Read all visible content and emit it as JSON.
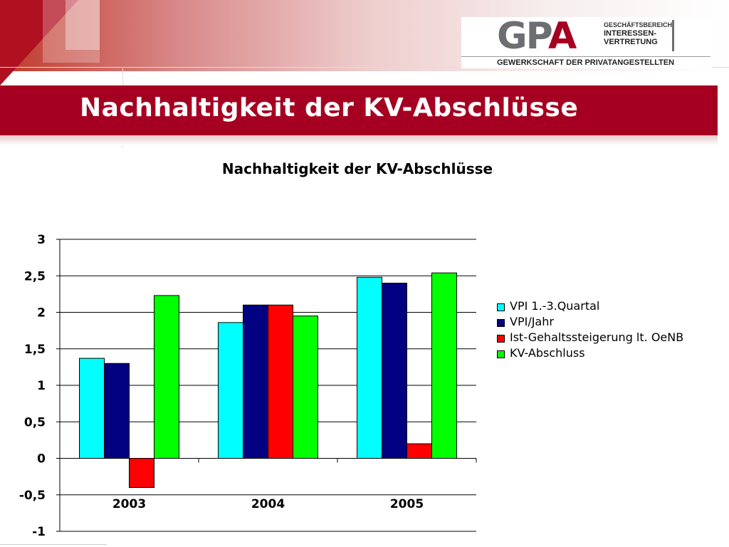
{
  "slide": {
    "title": "Nachhaltigkeit der KV-Abschlüsse"
  },
  "logo": {
    "main_gp": "GP",
    "main_a": "A",
    "side_line1": "GESCHÄFTSBEREICH",
    "side_line2": "INTERESSEN-",
    "side_line3": "VERTRETUNG",
    "subtitle": "GEWERKSCHAFT DER PRIVATANGESTELLTEN",
    "colors": {
      "grey": "#6d6e71",
      "red": "#a50021"
    }
  },
  "theme": {
    "title_bar_color": "#a50021"
  },
  "chart_data": {
    "type": "bar",
    "title": "Nachhaltigkeit der KV-Abschlüsse",
    "xlabel": "",
    "ylabel": "",
    "categories": [
      "2003",
      "2004",
      "2005"
    ],
    "series": [
      {
        "name": "VPI 1.-3.Quartal",
        "color": "#00ffff",
        "values": [
          1.37,
          1.86,
          2.48
        ]
      },
      {
        "name": "VPI/Jahr",
        "color": "#000080",
        "values": [
          1.3,
          2.1,
          2.4
        ]
      },
      {
        "name": "Ist-Gehaltssteigerung lt. OeNB",
        "color": "#ff0000",
        "values": [
          -0.4,
          2.1,
          0.2
        ]
      },
      {
        "name": "KV-Abschluss",
        "color": "#00ff00",
        "values": [
          2.23,
          1.95,
          2.54
        ]
      }
    ],
    "ylim": [
      -1,
      3
    ],
    "yticks": [
      3,
      2.5,
      2,
      1.5,
      1,
      0.5,
      0,
      -0.5,
      -1
    ],
    "ytick_labels": [
      "3",
      "2,5",
      "2",
      "1,5",
      "1",
      "0,5",
      "0",
      "-0,5",
      "-1"
    ],
    "grid": true,
    "legend_position": "right"
  }
}
